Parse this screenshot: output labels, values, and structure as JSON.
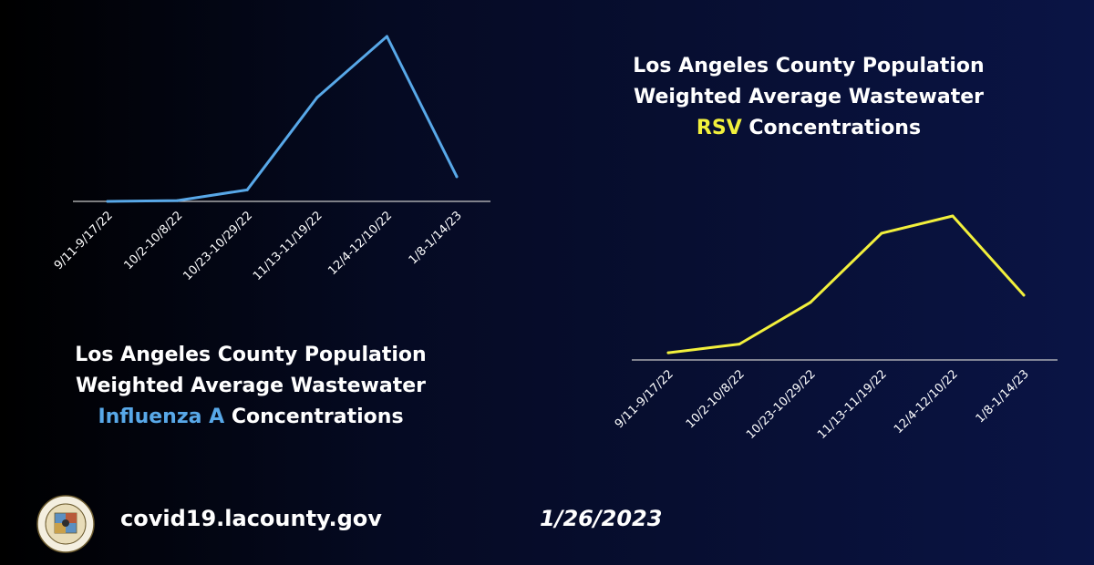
{
  "chart_data": [
    {
      "type": "line",
      "title_lines": [
        "Los Angeles County Population",
        "Weighted Average Wastewater"
      ],
      "title_highlight": "Influenza A",
      "title_suffix": " Concentrations",
      "categories": [
        "9/11-9/17/22",
        "10/2-10/8/22",
        "10/23-10/29/22",
        "11/13-11/19/22",
        "12/4-12/10/22",
        "1/8-1/14/23"
      ],
      "series": [
        {
          "values": [
            0,
            0.5,
            7,
            63,
            100,
            15
          ]
        }
      ],
      "ylim": [
        0,
        100
      ],
      "grid": false,
      "color": "#58a8e8"
    },
    {
      "type": "line",
      "title_lines": [
        "Los Angeles County Population",
        "Weighted Average Wastewater"
      ],
      "title_highlight": "RSV",
      "title_suffix": " Concentrations",
      "categories": [
        "9/11-9/17/22",
        "10/2-10/8/22",
        "10/23-10/29/22",
        "11/13-11/19/22",
        "12/4-12/10/22",
        "1/8-1/14/23"
      ],
      "series": [
        {
          "values": [
            5,
            11,
            40,
            88,
            100,
            45
          ]
        }
      ],
      "ylim": [
        0,
        100
      ],
      "grid": false,
      "color": "#f2f03c"
    }
  ],
  "footer": {
    "url": "covid19.lacounty.gov",
    "date": "1/26/2023"
  },
  "seal": {
    "text_top": "COUNTY OF LOS ANGELES",
    "text_bottom": "CALIFORNIA"
  }
}
